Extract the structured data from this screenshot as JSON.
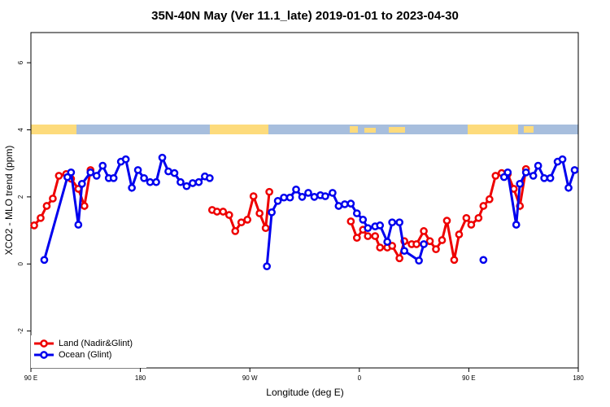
{
  "chart_data": {
    "type": "line",
    "title": "35N-40N May (Ver 11.1_late)   2019-01-01 to 2023-04-30",
    "xlabel": "Longitude (deg E)",
    "ylabel": "XCO2 - MLO trend (ppm)",
    "xlim": [
      90,
      540
    ],
    "ylim": [
      -3.1,
      6.9
    ],
    "xticks": [
      {
        "value": 90,
        "label": "90 E"
      },
      180,
      {
        "value": 270,
        "label": "90 W"
      },
      {
        "value": 360,
        "label": "0"
      },
      {
        "value": 450,
        "label": "90 E"
      },
      {
        "value": 540,
        "label": "180"
      }
    ],
    "yticks": [
      -2,
      0,
      2,
      4,
      6
    ],
    "legend": "bottom-left",
    "series": [
      {
        "name": "Land (Nadir&Glint)",
        "color": "#ee0000",
        "x": [
          92.7,
          98,
          103,
          108,
          113,
          119,
          123,
          129,
          134,
          139,
          190,
          239,
          243,
          248,
          253,
          258,
          263,
          268,
          273,
          278,
          283,
          286,
          320,
          353,
          358,
          363,
          367,
          373,
          377,
          383,
          387,
          393,
          397,
          403,
          407,
          413,
          418,
          423,
          428,
          432,
          438,
          442,
          448,
          452,
          458,
          462,
          467,
          472,
          477,
          482,
          487,
          492,
          497
        ],
        "values": [
          1.15,
          1.37,
          1.73,
          1.95,
          2.63,
          2.68,
          2.54,
          2.24,
          1.73,
          2.8,
          null,
          1.61,
          1.56,
          1.56,
          1.46,
          0.98,
          1.24,
          1.32,
          2.02,
          1.51,
          1.07,
          2.15,
          null,
          1.27,
          0.78,
          1.02,
          0.83,
          0.83,
          0.49,
          0.49,
          0.54,
          0.17,
          0.68,
          0.59,
          0.59,
          0.98,
          0.68,
          0.44,
          0.71,
          1.29,
          0.12,
          0.88,
          1.37,
          1.17,
          1.37,
          1.73,
          1.93,
          2.63,
          2.71,
          2.68,
          2.24,
          1.73,
          2.83
        ]
      },
      {
        "name": "Ocean (Glint)",
        "color": "#0000ee",
        "x": [
          101,
          120,
          123,
          129,
          132,
          139,
          144,
          149,
          154,
          158,
          164,
          168,
          173,
          178,
          183,
          188,
          193,
          198,
          203,
          208,
          213,
          218,
          223,
          228,
          233,
          237,
          260,
          284,
          288,
          293,
          298,
          303,
          308,
          313,
          318,
          323,
          328,
          332,
          338,
          343,
          348,
          353,
          358,
          363,
          367,
          373,
          377,
          383,
          387,
          393,
          397,
          409,
          413,
          440,
          462,
          470,
          479,
          482,
          489,
          492,
          497,
          503,
          507,
          512,
          517,
          523,
          527,
          532,
          537
        ],
        "values": [
          0.12,
          2.59,
          2.73,
          1.17,
          2.39,
          2.73,
          2.63,
          2.93,
          2.56,
          2.56,
          3.05,
          3.12,
          2.27,
          2.8,
          2.56,
          2.44,
          2.44,
          3.17,
          2.76,
          2.71,
          2.44,
          2.32,
          2.41,
          2.44,
          2.61,
          2.56,
          null,
          -0.07,
          1.54,
          1.88,
          1.98,
          1.98,
          2.22,
          2.0,
          2.12,
          2.0,
          2.05,
          2.02,
          2.12,
          1.73,
          1.78,
          1.8,
          1.51,
          1.32,
          1.07,
          1.12,
          1.15,
          0.66,
          1.24,
          1.24,
          0.39,
          0.1,
          0.59,
          null,
          0.12,
          null,
          2.59,
          2.73,
          1.17,
          2.39,
          2.73,
          2.63,
          2.93,
          2.56,
          2.56,
          3.05,
          3.12,
          2.27,
          2.8
        ]
      }
    ]
  }
}
